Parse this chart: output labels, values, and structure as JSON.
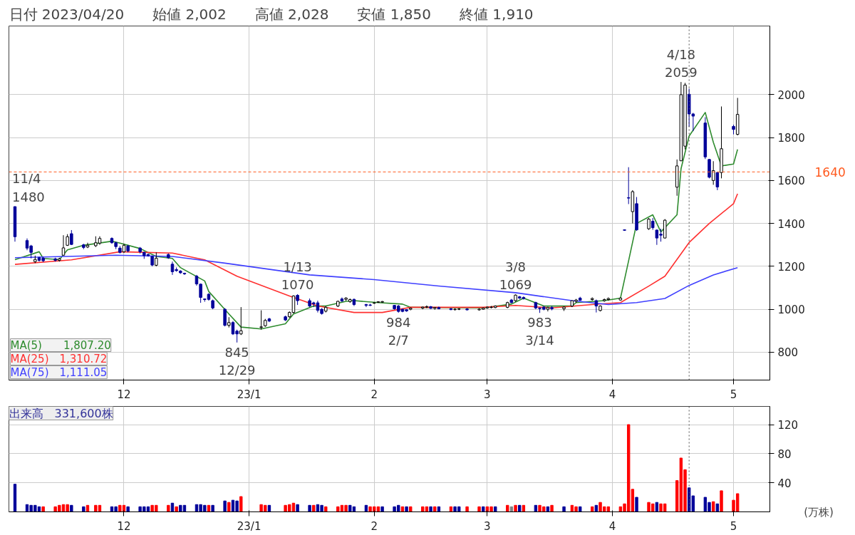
{
  "chart_data": [
    {
      "type": "candlestick",
      "title": "日付 2023/04/20　　始値 2,002　　高値 2,028　　安値 1,850　　終値 1,910",
      "x": [
        "2022-11-04",
        "2022-11-07",
        "2022-11-08",
        "2022-11-09",
        "2022-11-10",
        "2022-11-11",
        "2022-11-14",
        "2022-11-15",
        "2022-11-16",
        "2022-11-17",
        "2022-11-18",
        "2022-11-21",
        "2022-11-22",
        "2022-11-24",
        "2022-11-25",
        "2022-11-28",
        "2022-11-29",
        "2022-11-30",
        "2022-12-01",
        "2022-12-02",
        "2022-12-05",
        "2022-12-06",
        "2022-12-07",
        "2022-12-08",
        "2022-12-09",
        "2022-12-12",
        "2022-12-13",
        "2022-12-14",
        "2022-12-15",
        "2022-12-16",
        "2022-12-19",
        "2022-12-20",
        "2022-12-21",
        "2022-12-22",
        "2022-12-23",
        "2022-12-26",
        "2022-12-27",
        "2022-12-28",
        "2022-12-29",
        "2022-12-30",
        "2023-01-04",
        "2023-01-05",
        "2023-01-06",
        "2023-01-10",
        "2023-01-11",
        "2023-01-12",
        "2023-01-13",
        "2023-01-16",
        "2023-01-17",
        "2023-01-18",
        "2023-01-19",
        "2023-01-20",
        "2023-01-23",
        "2023-01-24",
        "2023-01-25",
        "2023-01-26",
        "2023-01-27",
        "2023-01-30",
        "2023-01-31",
        "2023-02-01",
        "2023-02-02",
        "2023-02-03",
        "2023-02-06",
        "2023-02-07",
        "2023-02-08",
        "2023-02-09",
        "2023-02-10",
        "2023-02-13",
        "2023-02-14",
        "2023-02-15",
        "2023-02-16",
        "2023-02-17",
        "2023-02-20",
        "2023-02-21",
        "2023-02-22",
        "2023-02-24",
        "2023-02-27",
        "2023-02-28",
        "2023-03-01",
        "2023-03-02",
        "2023-03-03",
        "2023-03-06",
        "2023-03-07",
        "2023-03-08",
        "2023-03-09",
        "2023-03-10",
        "2023-03-13",
        "2023-03-14",
        "2023-03-15",
        "2023-03-16",
        "2023-03-17",
        "2023-03-20",
        "2023-03-22",
        "2023-03-23",
        "2023-03-24",
        "2023-03-27",
        "2023-03-28",
        "2023-03-29",
        "2023-03-30",
        "2023-03-31",
        "2023-04-03",
        "2023-04-04",
        "2023-04-05",
        "2023-04-06",
        "2023-04-07",
        "2023-04-10",
        "2023-04-11",
        "2023-04-12",
        "2023-04-13",
        "2023-04-14",
        "2023-04-17",
        "2023-04-18",
        "2023-04-19",
        "2023-04-20",
        "2023-04-21",
        "2023-04-24",
        "2023-04-25",
        "2023-04-26",
        "2023-04-27",
        "2023-04-28",
        "2023-05-01",
        "2023-05-02"
      ],
      "ohlc": [
        [
          1478,
          1480,
          1315,
          1338
        ],
        [
          1320,
          1330,
          1275,
          1285
        ],
        [
          1295,
          1300,
          1237,
          1265
        ],
        [
          1222,
          1250,
          1215,
          1232
        ],
        [
          1240,
          1245,
          1222,
          1228
        ],
        [
          1238,
          1245,
          1220,
          1226
        ],
        [
          1235,
          1240,
          1222,
          1228
        ],
        [
          1228,
          1240,
          1222,
          1235
        ],
        [
          1252,
          1345,
          1250,
          1286
        ],
        [
          1298,
          1350,
          1295,
          1338
        ],
        [
          1352,
          1369,
          1300,
          1302
        ],
        [
          1300,
          1305,
          1280,
          1288
        ],
        [
          1290,
          1310,
          1285,
          1298
        ],
        [
          1296,
          1340,
          1290,
          1310
        ],
        [
          1308,
          1340,
          1300,
          1330
        ],
        [
          1330,
          1335,
          1305,
          1310
        ],
        [
          1310,
          1315,
          1280,
          1292
        ],
        [
          1285,
          1295,
          1260,
          1265
        ],
        [
          1268,
          1305,
          1262,
          1298
        ],
        [
          1295,
          1300,
          1265,
          1272
        ],
        [
          1285,
          1290,
          1260,
          1268
        ],
        [
          1265,
          1268,
          1235,
          1250
        ],
        [
          1255,
          1260,
          1245,
          1250
        ],
        [
          1246,
          1250,
          1200,
          1206
        ],
        [
          1205,
          1265,
          1200,
          1238
        ],
        [
          1255,
          1260,
          1235,
          1240
        ],
        [
          1210,
          1222,
          1160,
          1175
        ],
        [
          1185,
          1195,
          1175,
          1180
        ],
        [
          1178,
          1182,
          1165,
          1170
        ],
        [
          1168,
          1170,
          1160,
          1165
        ],
        [
          1154,
          1160,
          1110,
          1118
        ],
        [
          1117,
          1120,
          1030,
          1055
        ],
        [
          1048,
          1050,
          1035,
          1045
        ],
        [
          1070,
          1075,
          1040,
          1046
        ],
        [
          1040,
          1045,
          1000,
          1006
        ],
        [
          1000,
          1005,
          920,
          925
        ],
        [
          925,
          963,
          915,
          938
        ],
        [
          938,
          945,
          880,
          885
        ],
        [
          898,
          905,
          845,
          885
        ],
        [
          885,
          1010,
          880,
          900
        ],
        [
          915,
          995,
          905,
          918
        ],
        [
          923,
          955,
          918,
          948
        ],
        [
          955,
          960,
          940,
          945
        ],
        [
          965,
          970,
          945,
          950
        ],
        [
          965,
          990,
          960,
          985
        ],
        [
          985,
          1065,
          980,
          1062
        ],
        [
          1065,
          1070,
          1020,
          1040
        ],
        [
          1040,
          1050,
          1010,
          1015
        ],
        [
          1030,
          1035,
          1010,
          1025
        ],
        [
          1030,
          1040,
          985,
          995
        ],
        [
          1000,
          1005,
          975,
          980
        ],
        [
          991,
          1015,
          985,
          1009
        ],
        [
          1015,
          1040,
          1010,
          1037
        ],
        [
          1048,
          1055,
          1035,
          1038
        ],
        [
          1046,
          1056,
          1040,
          1052
        ],
        [
          1036,
          1050,
          1030,
          1045
        ],
        [
          1046,
          1050,
          1015,
          1022
        ],
        [
          1022,
          1025,
          1010,
          1018
        ],
        [
          1020,
          1025,
          1015,
          1018
        ],
        [
          1028,
          1033,
          1025,
          1030
        ],
        [
          1032,
          1036,
          1030,
          1035
        ],
        [
          1033,
          1038,
          1030,
          1036
        ],
        [
          1018,
          1020,
          998,
          1002
        ],
        [
          1015,
          1020,
          984,
          990
        ],
        [
          1000,
          1002,
          986,
          990
        ],
        [
          998,
          1000,
          988,
          992
        ],
        [
          1000,
          1008,
          995,
          1005
        ],
        [
          1005,
          1012,
          1000,
          1010
        ],
        [
          1010,
          1018,
          1005,
          1012
        ],
        [
          1012,
          1015,
          1002,
          1004
        ],
        [
          1004,
          1010,
          998,
          1008
        ],
        [
          1008,
          1012,
          1000,
          1002
        ],
        [
          1002,
          1006,
          996,
          998
        ],
        [
          998,
          1004,
          994,
          1000
        ],
        [
          1000,
          1005,
          996,
          1001
        ],
        [
          1001,
          1004,
          995,
          997
        ],
        [
          997,
          1003,
          994,
          1000
        ],
        [
          1000,
          1008,
          998,
          1006
        ],
        [
          1006,
          1012,
          1002,
          1010
        ],
        [
          1008,
          1015,
          1004,
          1010
        ],
        [
          1008,
          1018,
          1005,
          1015
        ],
        [
          1009,
          1035,
          1005,
          1031
        ],
        [
          1043,
          1048,
          1028,
          1031
        ],
        [
          1040,
          1069,
          1035,
          1066
        ],
        [
          1058,
          1062,
          1048,
          1052
        ],
        [
          1055,
          1060,
          1045,
          1050
        ],
        [
          1031,
          1035,
          1000,
          1006
        ],
        [
          1006,
          1008,
          983,
          1003
        ],
        [
          1010,
          1015,
          995,
          1000
        ],
        [
          1000,
          1012,
          990,
          1008
        ],
        [
          1008,
          1015,
          995,
          1002
        ],
        [
          1002,
          1012,
          992,
          1010
        ],
        [
          1015,
          1040,
          1010,
          1040
        ],
        [
          1037,
          1048,
          1030,
          1043
        ],
        [
          1052,
          1058,
          1040,
          1042
        ],
        [
          1045,
          1055,
          1040,
          1050
        ],
        [
          1040,
          1045,
          985,
          1015
        ],
        [
          994,
          1018,
          990,
          1015
        ],
        [
          1040,
          1050,
          1035,
          1045
        ],
        [
          1045,
          1055,
          1040,
          1050
        ],
        [
          1043,
          1055,
          1040,
          1052
        ],
        [
          1370,
          1372,
          1366,
          1368
        ],
        [
          1520,
          1662,
          1490,
          1518
        ],
        [
          1455,
          1555,
          1400,
          1548
        ],
        [
          1492,
          1523,
          1365,
          1370
        ],
        [
          1375,
          1425,
          1370,
          1420
        ],
        [
          1410,
          1425,
          1370,
          1380
        ],
        [
          1369,
          1372,
          1300,
          1332
        ],
        [
          1350,
          1375,
          1315,
          1345
        ],
        [
          1332,
          1420,
          1330,
          1415
        ],
        [
          1569,
          1698,
          1529,
          1668
        ],
        [
          1692,
          2059,
          1690,
          2000
        ],
        [
          1760,
          2055,
          1745,
          2045
        ],
        [
          2002,
          2028,
          1850,
          1910
        ],
        [
          1910,
          1915,
          1830,
          1900
        ],
        [
          1868,
          1895,
          1700,
          1710
        ],
        [
          1698,
          1700,
          1610,
          1615
        ],
        [
          1600,
          1690,
          1580,
          1646
        ],
        [
          1637,
          1640,
          1555,
          1570
        ],
        [
          1637,
          1945,
          1610,
          1748
        ],
        [
          1852,
          1860,
          1815,
          1838
        ],
        [
          1815,
          1985,
          1810,
          1908
        ]
      ],
      "series": [
        {
          "type": "line",
          "name": "MA(5)　　1,807.20",
          "color": "#2e8b2e",
          "x": [
            "2022-11-04",
            "2022-11-10",
            "2022-11-11",
            "2022-11-15",
            "2022-11-17",
            "2022-11-21",
            "2022-11-28",
            "2022-11-30",
            "2022-12-05",
            "2022-12-09",
            "2022-12-13",
            "2022-12-15",
            "2022-12-21",
            "2022-12-22",
            "2022-12-27",
            "2022-12-30",
            "2023-01-04",
            "2023-01-10",
            "2023-01-12",
            "2023-01-17",
            "2023-01-20",
            "2023-01-25",
            "2023-01-27",
            "2023-02-02",
            "2023-02-08",
            "2023-02-10",
            "2023-02-28",
            "2023-03-07",
            "2023-03-10",
            "2023-03-15",
            "2023-03-22",
            "2023-03-23",
            "2023-03-30",
            "2023-04-03",
            "2023-04-05",
            "2023-04-07",
            "2023-04-11",
            "2023-04-13",
            "2023-04-17",
            "2023-04-18",
            "2023-04-20",
            "2023-04-24",
            "2023-04-26",
            "2023-04-28",
            "2023-05-01",
            "2023-05-02"
          ],
          "values": [
            1231,
            1268,
            1237,
            1231,
            1277,
            1298,
            1317,
            1308,
            1283,
            1246,
            1237,
            1194,
            1132,
            1083,
            978,
            917,
            908,
            932,
            978,
            1015,
            1015,
            1037,
            1040,
            1031,
            1024,
            1009,
            1006,
            1024,
            1052,
            1015,
            1015,
            1031,
            1040,
            1052,
            1225,
            1400,
            1440,
            1360,
            1440,
            1655,
            1807,
            1917,
            1778,
            1668,
            1677,
            1745
          ]
        },
        {
          "type": "line",
          "name": "MA(25)　1,310.72",
          "color": "#ff3030",
          "x": [
            "2022-11-04",
            "2022-11-18",
            "2022-11-30",
            "2022-12-13",
            "2022-12-21",
            "2022-12-29",
            "2023-01-11",
            "2023-01-18",
            "2023-01-27",
            "2023-02-03",
            "2023-02-10",
            "2023-02-28",
            "2023-03-08",
            "2023-03-17",
            "2023-03-27",
            "2023-04-03",
            "2023-04-10",
            "2023-04-14",
            "2023-04-20",
            "2023-04-25",
            "2023-05-01",
            "2023-05-02"
          ],
          "values": [
            1209,
            1230,
            1268,
            1262,
            1230,
            1154,
            1062,
            1015,
            985,
            985,
            1009,
            1009,
            1018,
            1006,
            1022,
            1031,
            1108,
            1154,
            1311,
            1400,
            1492,
            1538
          ]
        },
        {
          "type": "line",
          "name": "MA(75)　1,111.05",
          "color": "#4040ff",
          "x": [
            "2022-11-04",
            "2022-11-29",
            "2022-12-13",
            "2022-12-26",
            "2023-01-16",
            "2023-02-01",
            "2023-02-17",
            "2023-03-08",
            "2023-03-22",
            "2023-03-31",
            "2023-04-07",
            "2023-04-14",
            "2023-04-20",
            "2023-04-26",
            "2023-05-02"
          ],
          "values": [
            1240,
            1252,
            1246,
            1215,
            1160,
            1138,
            1108,
            1077,
            1040,
            1022,
            1031,
            1050,
            1111,
            1160,
            1194
          ]
        }
      ],
      "xlim": [
        "2022-11-03",
        "2023-05-10"
      ],
      "xticks": [
        {
          "value": "2022-12-01",
          "label": "12"
        },
        {
          "value": "2023-01-01",
          "label": "23/1"
        },
        {
          "value": "2023-02-01",
          "label": "2"
        },
        {
          "value": "2023-03-01",
          "label": "3"
        },
        {
          "value": "2023-04-01",
          "label": "4"
        },
        {
          "value": "2023-05-01",
          "label": "5"
        }
      ],
      "ylim": [
        670,
        2320
      ],
      "yticks": [
        800,
        1000,
        1200,
        1400,
        1600,
        1800,
        2000
      ],
      "grid": true,
      "legend": "bottom left",
      "annotations": [
        {
          "text": "11/4\n1480",
          "x": "2022-11-04",
          "y": 1480
        },
        {
          "text": "845\n12/29",
          "x": "2022-12-29",
          "y": 845
        },
        {
          "text": "1/13\n1070",
          "x": "2023-01-13",
          "y": 1070
        },
        {
          "text": "984\n2/7",
          "x": "2023-02-07",
          "y": 984
        },
        {
          "text": "3/8\n1069",
          "x": "2023-03-08",
          "y": 1069
        },
        {
          "text": "983\n3/14",
          "x": "2023-03-14",
          "y": 983
        },
        {
          "text": "4/18\n2059",
          "x": "2023-04-18",
          "y": 2059
        }
      ],
      "ref_lines": [
        {
          "axis": "y",
          "value": 1640,
          "label": "1640",
          "color": "#ff5a1f",
          "line_style": "dashed"
        },
        {
          "axis": "x",
          "value": "2023-04-20",
          "label": null,
          "color": "#555555",
          "line_style": "dotted"
        }
      ]
    },
    {
      "type": "bar",
      "title": "出来高　331,600株",
      "ylabel": "(万株)",
      "x": [
        "2022-11-04",
        "2022-11-07",
        "2022-11-08",
        "2022-11-09",
        "2022-11-10",
        "2022-11-11",
        "2022-11-14",
        "2022-11-15",
        "2022-11-16",
        "2022-11-17",
        "2022-11-18",
        "2022-11-21",
        "2022-11-22",
        "2022-11-24",
        "2022-11-25",
        "2022-11-28",
        "2022-11-29",
        "2022-11-30",
        "2022-12-01",
        "2022-12-02",
        "2022-12-05",
        "2022-12-06",
        "2022-12-07",
        "2022-12-08",
        "2022-12-09",
        "2022-12-12",
        "2022-12-13",
        "2022-12-14",
        "2022-12-15",
        "2022-12-16",
        "2022-12-19",
        "2022-12-20",
        "2022-12-21",
        "2022-12-22",
        "2022-12-23",
        "2022-12-26",
        "2022-12-27",
        "2022-12-28",
        "2022-12-29",
        "2022-12-30",
        "2023-01-04",
        "2023-01-05",
        "2023-01-06",
        "2023-01-10",
        "2023-01-11",
        "2023-01-12",
        "2023-01-13",
        "2023-01-16",
        "2023-01-17",
        "2023-01-18",
        "2023-01-19",
        "2023-01-20",
        "2023-01-23",
        "2023-01-24",
        "2023-01-25",
        "2023-01-26",
        "2023-01-27",
        "2023-01-30",
        "2023-01-31",
        "2023-02-01",
        "2023-02-02",
        "2023-02-03",
        "2023-02-06",
        "2023-02-07",
        "2023-02-08",
        "2023-02-09",
        "2023-02-10",
        "2023-02-13",
        "2023-02-14",
        "2023-02-15",
        "2023-02-16",
        "2023-02-17",
        "2023-02-20",
        "2023-02-21",
        "2023-02-22",
        "2023-02-24",
        "2023-02-27",
        "2023-02-28",
        "2023-03-01",
        "2023-03-02",
        "2023-03-03",
        "2023-03-06",
        "2023-03-07",
        "2023-03-08",
        "2023-03-09",
        "2023-03-10",
        "2023-03-13",
        "2023-03-14",
        "2023-03-15",
        "2023-03-16",
        "2023-03-17",
        "2023-03-20",
        "2023-03-22",
        "2023-03-23",
        "2023-03-24",
        "2023-03-27",
        "2023-03-28",
        "2023-03-29",
        "2023-03-30",
        "2023-03-31",
        "2023-04-03",
        "2023-04-04",
        "2023-04-05",
        "2023-04-06",
        "2023-04-07",
        "2023-04-10",
        "2023-04-11",
        "2023-04-12",
        "2023-04-13",
        "2023-04-14",
        "2023-04-17",
        "2023-04-18",
        "2023-04-19",
        "2023-04-20",
        "2023-04-21",
        "2023-04-24",
        "2023-04-25",
        "2023-04-26",
        "2023-04-27",
        "2023-04-28",
        "2023-05-01",
        "2023-05-02"
      ],
      "values": [
        38,
        10,
        9,
        9,
        7,
        7,
        7,
        9,
        10,
        10,
        9,
        7,
        9,
        9,
        9,
        7,
        7,
        9,
        9,
        7,
        7,
        7,
        7,
        9,
        9,
        9,
        12,
        7,
        9,
        9,
        10,
        10,
        9,
        9,
        9,
        15,
        13,
        16,
        15,
        21,
        10,
        9,
        9,
        9,
        10,
        12,
        10,
        9,
        9,
        10,
        9,
        7,
        7,
        9,
        9,
        9,
        7,
        9,
        7,
        7,
        7,
        7,
        7,
        9,
        7,
        7,
        7,
        7,
        7,
        7,
        7,
        7,
        7,
        7,
        7,
        7,
        7,
        7,
        7,
        7,
        7,
        9,
        7,
        9,
        9,
        9,
        9,
        9,
        7,
        7,
        9,
        7,
        9,
        7,
        7,
        7,
        9,
        13,
        7,
        7,
        7,
        11,
        120,
        31,
        20,
        13,
        11,
        13,
        11,
        11,
        43,
        74,
        58,
        33,
        22,
        20,
        13,
        14,
        11,
        29,
        16,
        25
      ],
      "colors": [
        "#000099",
        "#000099",
        "#000099",
        "#000099",
        "#000099",
        "#ff0000",
        "#ff0000",
        "#ff0000",
        "#ff0000",
        "#ff0000",
        "#000099",
        "#000099",
        "#ff0000",
        "#ff0000",
        "#ff0000",
        "#000099",
        "#000099",
        "#ff0000",
        "#ff0000",
        "#000099",
        "#000099",
        "#000099",
        "#000099",
        "#ff0000",
        "#ff0000",
        "#ff0000",
        "#000099",
        "#ff0000",
        "#000099",
        "#000099",
        "#000099",
        "#000099",
        "#000099",
        "#ff0000",
        "#000099",
        "#000099",
        "#ff0000",
        "#000099",
        "#000099",
        "#ff0000",
        "#ff0000",
        "#ff0000",
        "#000099",
        "#ff0000",
        "#ff0000",
        "#ff0000",
        "#000099",
        "#000099",
        "#ff0000",
        "#000099",
        "#000099",
        "#ff0000",
        "#ff0000",
        "#ff0000",
        "#ff0000",
        "#000099",
        "#000099",
        "#000099",
        "#ff0000",
        "#ff0000",
        "#ff0000",
        "#000099",
        "#000099",
        "#000099",
        "#ff0000",
        "#000099",
        "#ff0000",
        "#ff0000",
        "#ff0000",
        "#000099",
        "#ff0000",
        "#000099",
        "#ff0000",
        "#000099",
        "#000099",
        "#ff0000",
        "#ff0000",
        "#000099",
        "#ff0000",
        "#ff0000",
        "#000099",
        "#ff0000",
        "#808080",
        "#ff0000",
        "#000099",
        "#ff0000",
        "#000099",
        "#ff0000",
        "#ff0000",
        "#000099",
        "#ff0000",
        "#000099",
        "#ff0000",
        "#ff0000",
        "#000099",
        "#ff0000",
        "#000099",
        "#ff0000",
        "#ff0000",
        "#ff0000",
        "#ff0000",
        "#ff0000",
        "#ff0000",
        "#ff0000",
        "#000099",
        "#ff0000",
        "#ff0000",
        "#000099",
        "#ff0000",
        "#ff0000",
        "#ff0000",
        "#ff0000",
        "#ff0000",
        "#000099",
        "#000099",
        "#000099",
        "#000099",
        "#ff0000",
        "#000099",
        "#ff0000",
        "#ff0000",
        "#ff0000"
      ],
      "xlim": [
        "2022-11-03",
        "2023-05-10"
      ],
      "xticks": [
        {
          "value": "2022-12-01",
          "label": "12"
        },
        {
          "value": "2023-01-01",
          "label": "23/1"
        },
        {
          "value": "2023-02-01",
          "label": "2"
        },
        {
          "value": "2023-03-01",
          "label": "3"
        },
        {
          "value": "2023-04-01",
          "label": "4"
        },
        {
          "value": "2023-05-01",
          "label": "5"
        }
      ],
      "ylim": [
        0,
        145
      ],
      "yticks": [
        40,
        80,
        120
      ],
      "grid": true,
      "ref_lines": [
        {
          "axis": "x",
          "value": "2023-04-20",
          "label": null,
          "color": "#555555",
          "line_style": "dotted"
        }
      ]
    }
  ]
}
